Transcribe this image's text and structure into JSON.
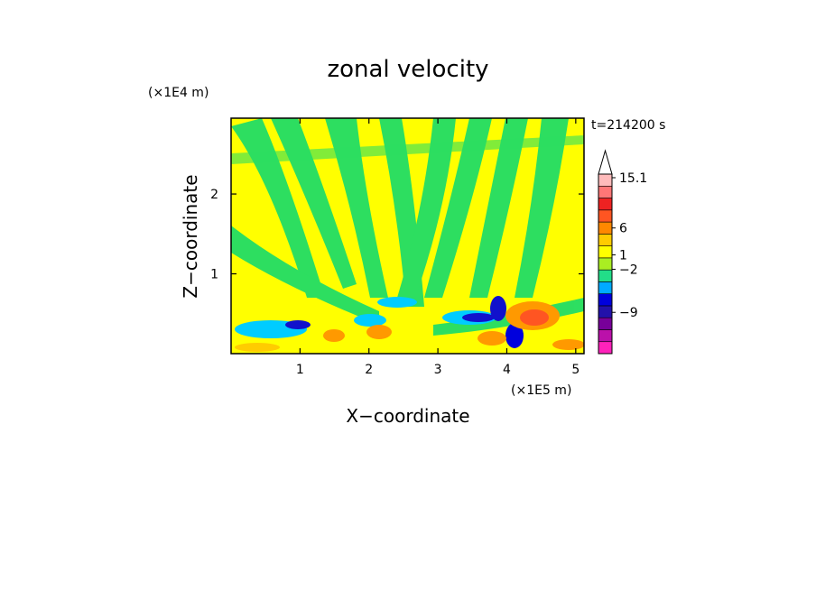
{
  "chart_data": {
    "type": "heatmap",
    "title": "zonal velocity",
    "xlabel": "X−coordinate",
    "ylabel": "Z−coordinate",
    "x_unit": "(×1E5 m)",
    "y_unit": "(×1E4 m)",
    "time_label": "t=214200 s",
    "x_ticks": [
      "1",
      "2",
      "3",
      "4",
      "5"
    ],
    "x_tick_values": [
      1,
      2,
      3,
      4,
      5
    ],
    "y_ticks": [
      "1",
      "2"
    ],
    "y_tick_values": [
      1,
      2
    ],
    "xlim": [
      0,
      5.12
    ],
    "ylim": [
      0,
      2.95
    ],
    "colorbar": {
      "tick_labels": [
        "15.1",
        "6",
        "1",
        "−2",
        "−9"
      ],
      "colors": [
        "#ff22bb",
        "#bb11aa",
        "#770099",
        "#2211aa",
        "#0000dd",
        "#00aaff",
        "#22dd88",
        "#aaee22",
        "#ffff00",
        "#ffcc00",
        "#ff8800",
        "#ff5522",
        "#ee2222",
        "#ff7777",
        "#ffbbbb"
      ],
      "extend_max": true
    },
    "field_description": "zonal velocity field, mostly weak values (green/yellow) with strong negative (blue) and positive (orange/red) values near x=4 and z<0.8"
  }
}
